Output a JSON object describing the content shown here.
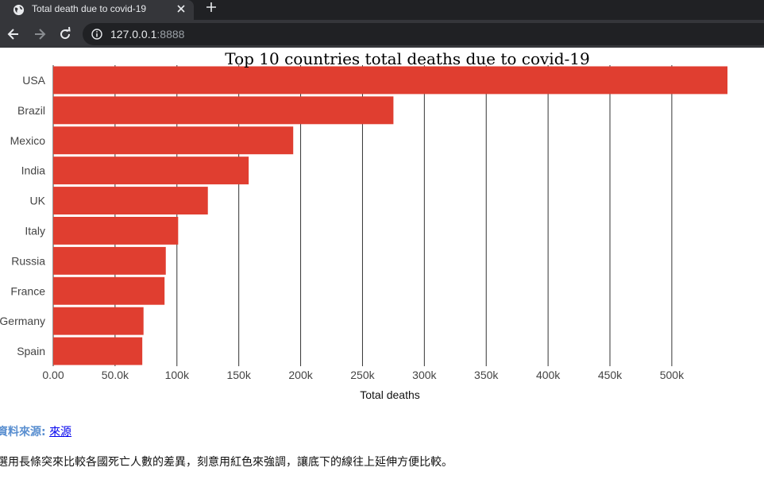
{
  "browser": {
    "tab_title": "Total death due to covid-19",
    "url_host": "127.0.0.1",
    "url_port": ":8888"
  },
  "colors": {
    "bar": "#e03e30"
  },
  "chart_data": {
    "type": "bar",
    "orientation": "horizontal",
    "title": "Top 10 countries total deaths due to covid-19",
    "xlabel": "Total deaths",
    "ylabel": "",
    "xlim": [
      0,
      545000
    ],
    "categories": [
      "USA",
      "Brazil",
      "Mexico",
      "India",
      "UK",
      "Italy",
      "Russia",
      "France",
      "Germany",
      "Spain"
    ],
    "values": [
      545000,
      275000,
      194000,
      158000,
      125000,
      101000,
      91000,
      90000,
      73000,
      72000
    ],
    "ticks": [
      0,
      50000,
      100000,
      150000,
      200000,
      250000,
      300000,
      350000,
      400000,
      450000,
      500000
    ],
    "tick_labels": [
      "0.00",
      "50.0k",
      "100k",
      "150k",
      "200k",
      "250k",
      "300k",
      "350k",
      "400k",
      "450k",
      "500k"
    ],
    "grid": true
  },
  "footer": {
    "source_label": "資料來源:",
    "source_link": "來源",
    "description": "選用長條突來比較各國死亡人數的差異，刻意用紅色來強調，讓底下的線往上延伸方便比較。"
  }
}
